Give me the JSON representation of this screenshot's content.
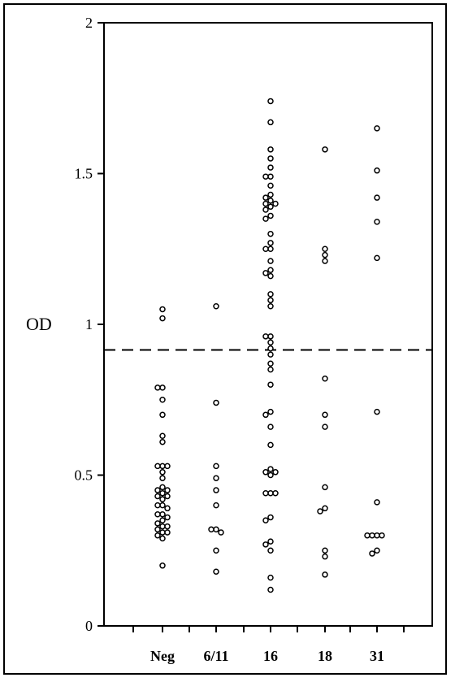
{
  "chart_data": {
    "type": "scatter",
    "title": "",
    "xlabel": "",
    "ylabel": "OD",
    "ylim": [
      0,
      2
    ],
    "yticks": [
      0,
      0.5,
      1,
      1.5,
      2
    ],
    "ytick_labels": [
      "0",
      "0.5",
      "1",
      "1.5",
      "2"
    ],
    "categories": [
      "Neg",
      "6/11",
      "16",
      "18",
      "31"
    ],
    "threshold": 0.915,
    "grid": false,
    "series": [
      {
        "category": "Neg",
        "values": [
          1.05,
          1.02,
          0.79,
          0.79,
          0.75,
          0.7,
          0.63,
          0.61,
          0.53,
          0.53,
          0.53,
          0.51,
          0.49,
          0.46,
          0.45,
          0.45,
          0.44,
          0.43,
          0.43,
          0.42,
          0.4,
          0.4,
          0.39,
          0.37,
          0.37,
          0.36,
          0.35,
          0.34,
          0.33,
          0.33,
          0.32,
          0.31,
          0.31,
          0.3,
          0.29,
          0.2
        ]
      },
      {
        "category": "6/11",
        "values": [
          1.06,
          0.74,
          0.53,
          0.49,
          0.45,
          0.4,
          0.32,
          0.32,
          0.31,
          0.25,
          0.18
        ]
      },
      {
        "category": "16",
        "values": [
          1.74,
          1.67,
          1.58,
          1.55,
          1.52,
          1.49,
          1.49,
          1.46,
          1.43,
          1.42,
          1.41,
          1.4,
          1.4,
          1.39,
          1.38,
          1.36,
          1.35,
          1.3,
          1.27,
          1.25,
          1.25,
          1.21,
          1.18,
          1.17,
          1.16,
          1.1,
          1.08,
          1.06,
          0.96,
          0.96,
          0.94,
          0.92,
          0.9,
          0.87,
          0.85,
          0.8,
          0.71,
          0.7,
          0.66,
          0.6,
          0.52,
          0.51,
          0.51,
          0.5,
          0.44,
          0.44,
          0.44,
          0.36,
          0.35,
          0.28,
          0.27,
          0.25,
          0.16,
          0.12
        ]
      },
      {
        "category": "18",
        "values": [
          1.58,
          1.25,
          1.23,
          1.21,
          0.82,
          0.7,
          0.66,
          0.46,
          0.39,
          0.38,
          0.25,
          0.23,
          0.17
        ]
      },
      {
        "category": "31",
        "values": [
          1.65,
          1.51,
          1.42,
          1.34,
          1.22,
          0.71,
          0.41,
          0.3,
          0.3,
          0.3,
          0.3,
          0.25,
          0.24
        ]
      }
    ]
  }
}
